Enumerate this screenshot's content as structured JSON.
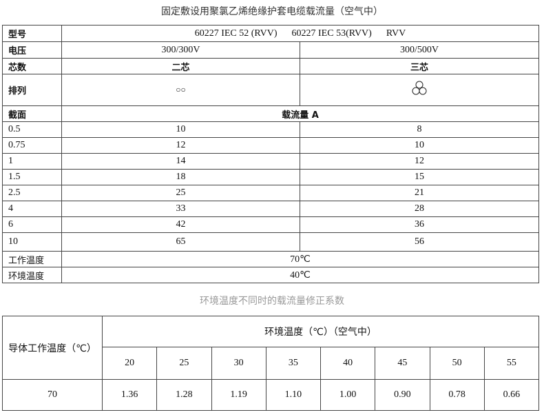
{
  "title": "固定敷设用聚氯乙烯绝缘护套电缆载流量（空气中）",
  "table1": {
    "model_label": "型号",
    "model_value": "60227 IEC 52 (RVV)      60227 IEC 53(RVV)      RVV",
    "voltage_label": "电压",
    "voltage": [
      "300/300V",
      "300/500V"
    ],
    "cores_label": "芯数",
    "cores": [
      "二芯",
      "三芯"
    ],
    "arrangement_label": "排列",
    "arrangement": [
      "○○",
      "three-circles-triangle-icon"
    ],
    "section_label": "截面",
    "current_label": "载流量 A",
    "rows": [
      {
        "section": "0.5",
        "two": "10",
        "three": "8"
      },
      {
        "section": "0.75",
        "two": "12",
        "three": "10"
      },
      {
        "section": "1",
        "two": "14",
        "three": "12"
      },
      {
        "section": "1.5",
        "two": "18",
        "three": "15"
      },
      {
        "section": "2.5",
        "two": "25",
        "three": "21"
      },
      {
        "section": "4",
        "two": "33",
        "three": "28"
      },
      {
        "section": "6",
        "two": "42",
        "three": "36"
      },
      {
        "section": "10",
        "two": "65",
        "three": "56"
      }
    ],
    "work_temp_label": "工作温度",
    "work_temp": "70℃",
    "ambient_temp_label": "环境温度",
    "ambient_temp": "40℃"
  },
  "title2": "环境温度不同时的载流量修正系数",
  "table2": {
    "row_header": "导体工作温度（℃）",
    "col_header": "环境温度（℃）（空气中）",
    "temps": [
      "20",
      "25",
      "30",
      "35",
      "40",
      "45",
      "50",
      "55"
    ],
    "conductor_temp": "70",
    "factors": [
      "1.36",
      "1.28",
      "1.19",
      "1.10",
      "1.00",
      "0.90",
      "0.78",
      "0.66"
    ]
  }
}
